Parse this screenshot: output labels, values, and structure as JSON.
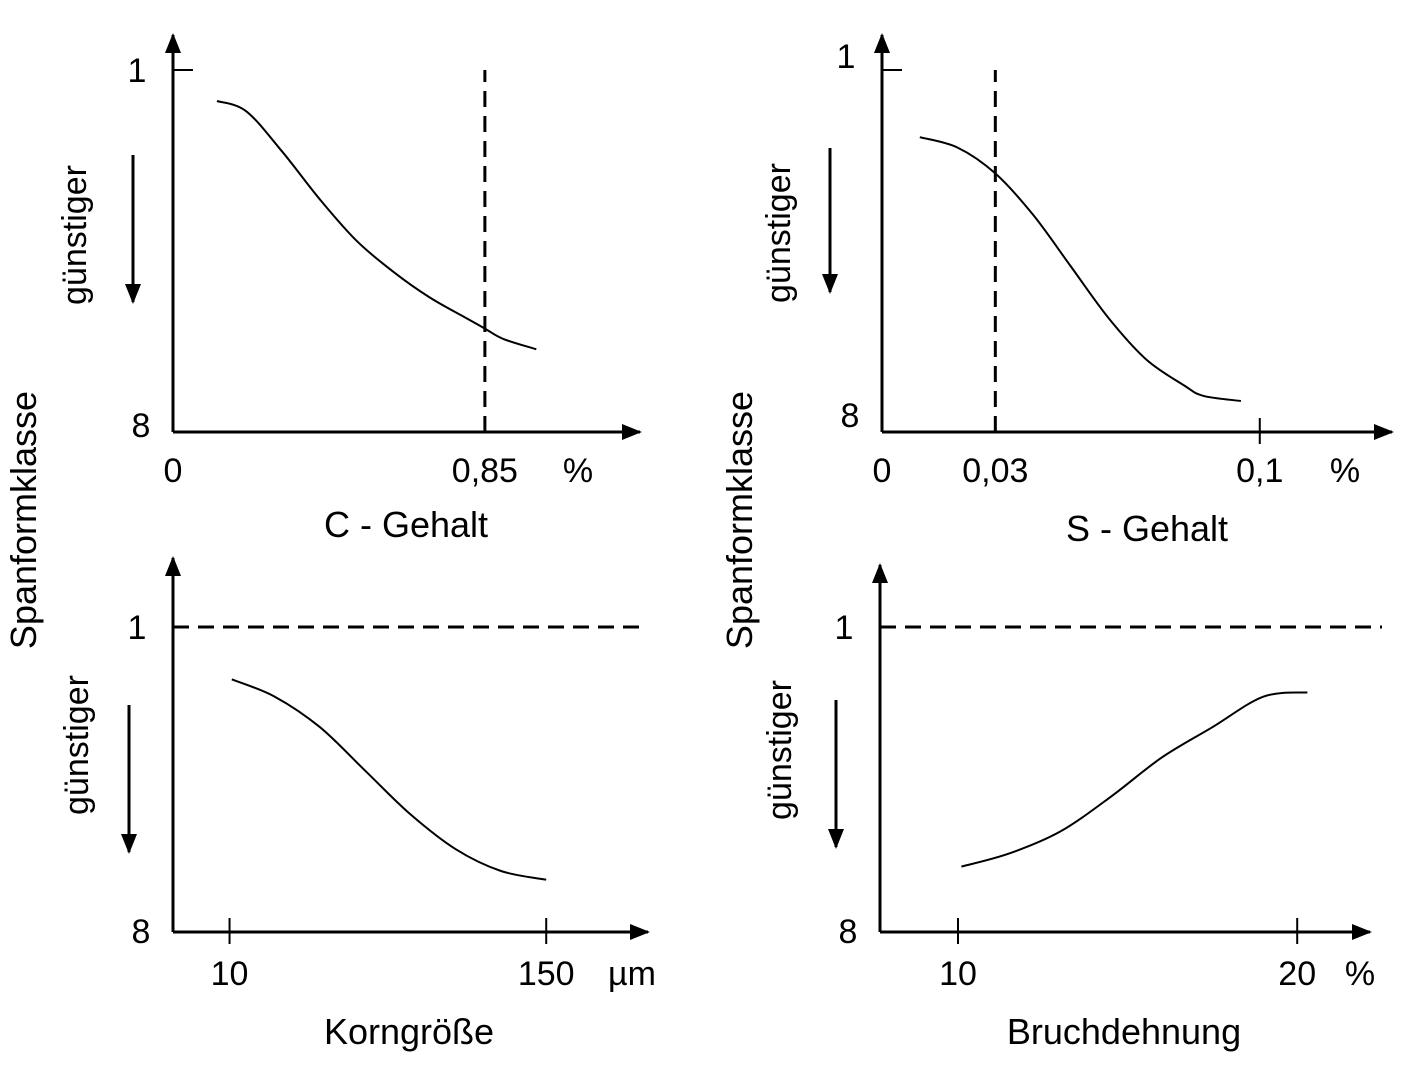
{
  "figure": {
    "y_axis_label": "Spanformklasse",
    "direction_label": "günstiger"
  },
  "chart_data": [
    {
      "type": "line",
      "xlabel": "C - Gehalt",
      "ylabel": "Spanformklasse",
      "x_unit": "%",
      "y_ticks": [
        "1",
        "8"
      ],
      "x_tick_labels": [
        "0",
        "0,85"
      ],
      "x_ticks": [
        0,
        0.85
      ],
      "xlim": [
        0,
        1.3
      ],
      "ylim": [
        8,
        1
      ],
      "reference_lines": [
        {
          "axis": "x",
          "value": 0.85,
          "style": "dashed"
        }
      ],
      "series": [
        {
          "x": [
            0.12,
            0.2,
            0.3,
            0.4,
            0.5,
            0.6,
            0.7,
            0.8,
            0.85,
            0.9,
            0.99
          ],
          "y": [
            1.6,
            1.8,
            2.6,
            3.5,
            4.3,
            4.9,
            5.4,
            5.8,
            6.0,
            6.2,
            6.4
          ]
        }
      ]
    },
    {
      "type": "line",
      "xlabel": "S - Gehalt",
      "ylabel": "Spanformklasse",
      "x_unit": "%",
      "y_ticks": [
        "1",
        "8"
      ],
      "x_tick_labels": [
        "0",
        "0,03",
        "0,1"
      ],
      "x_ticks": [
        0,
        0.03,
        0.1
      ],
      "xlim": [
        0,
        0.135
      ],
      "ylim": [
        8,
        1
      ],
      "reference_lines": [
        {
          "axis": "x",
          "value": 0.03,
          "style": "dashed"
        }
      ],
      "series": [
        {
          "x": [
            0.01,
            0.02,
            0.03,
            0.04,
            0.05,
            0.06,
            0.07,
            0.08,
            0.085,
            0.095
          ],
          "y": [
            2.3,
            2.5,
            3.0,
            3.8,
            4.8,
            5.8,
            6.6,
            7.1,
            7.3,
            7.4
          ]
        }
      ]
    },
    {
      "type": "line",
      "xlabel": "Korngröße",
      "ylabel": "Spanformklasse",
      "x_unit": "µm",
      "y_ticks": [
        "1",
        "8"
      ],
      "x_tick_labels": [
        "10",
        "150"
      ],
      "x_ticks": [
        10,
        150
      ],
      "xlim": [
        -15,
        195
      ],
      "ylim": [
        8,
        1
      ],
      "reference_lines": [
        {
          "axis": "y",
          "value": 1,
          "style": "dashed"
        }
      ],
      "series": [
        {
          "x": [
            11,
            30,
            50,
            70,
            90,
            110,
            130,
            150
          ],
          "y": [
            2.2,
            2.6,
            3.3,
            4.3,
            5.3,
            6.1,
            6.6,
            6.8
          ]
        }
      ]
    },
    {
      "type": "line",
      "xlabel": "Bruchdehnung",
      "ylabel": "Spanformklasse",
      "x_unit": "%",
      "y_ticks": [
        "1",
        "8"
      ],
      "x_tick_labels": [
        "10",
        "20"
      ],
      "x_ticks": [
        10,
        20
      ],
      "xlim": [
        7.7,
        22.5
      ],
      "ylim": [
        8,
        1
      ],
      "reference_lines": [
        {
          "axis": "y",
          "value": 1,
          "style": "dashed"
        }
      ],
      "series": [
        {
          "x": [
            10.1,
            11.5,
            13,
            14.5,
            16,
            17.5,
            19,
            20.3
          ],
          "y": [
            6.5,
            6.2,
            5.7,
            4.9,
            4.0,
            3.3,
            2.6,
            2.5
          ]
        }
      ]
    }
  ]
}
